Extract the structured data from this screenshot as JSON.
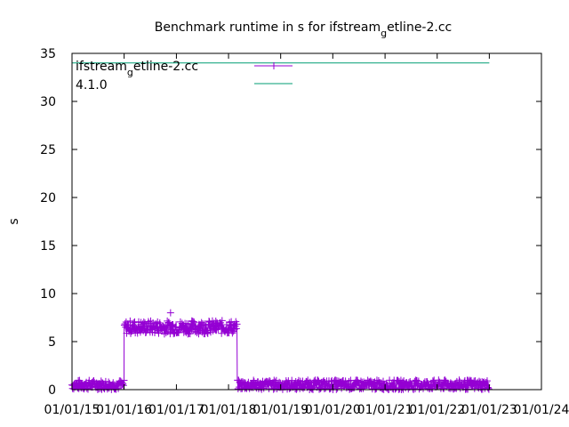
{
  "chart_data": {
    "type": "line",
    "title": "Benchmark runtime in s for ifstream_getline-2.cc",
    "title_parts": {
      "before": "Benchmark runtime in s for ifstream",
      "sub": "g",
      "after": "etline-2.cc"
    },
    "xlabel": "",
    "ylabel": "s",
    "x_ticks": [
      "01/01/15",
      "01/01/16",
      "01/01/17",
      "01/01/18",
      "01/01/19",
      "01/01/20",
      "01/01/21",
      "01/01/22",
      "01/01/23",
      "01/01/24"
    ],
    "y_ticks": [
      "0",
      "5",
      "10",
      "15",
      "20",
      "25",
      "30",
      "35"
    ],
    "xlim": [
      "2015-01-01",
      "2024-01-01"
    ],
    "ylim": [
      0,
      35
    ],
    "grid": false,
    "legend_position": "top-left",
    "series": [
      {
        "name": "ifstream_getline-2.cc",
        "name_parts": {
          "before": "ifstream",
          "sub": "g",
          "after": "etline-2.cc"
        },
        "style": "points-plus-with-lines",
        "color": "#9400d3",
        "segments": [
          {
            "x_start": "2015-01-01",
            "x_end": "2015-12-31",
            "y_low": 0.0,
            "y_high": 1.0
          },
          {
            "x_start": "2016-01-01",
            "x_end": "2018-03-01",
            "y_low": 5.8,
            "y_high": 7.2
          },
          {
            "x_start": "2018-03-03",
            "x_end": "2023-01-01",
            "y_low": 0.0,
            "y_high": 1.0
          }
        ],
        "outliers": [
          {
            "x": "2016-11-21",
            "y": 8.0
          }
        ]
      },
      {
        "name": "4.1.0",
        "style": "line",
        "color": "#009e73",
        "points": [
          {
            "x": "2015-01-01",
            "y": 34.0
          },
          {
            "x": "2023-01-01",
            "y": 34.0
          }
        ]
      }
    ]
  }
}
